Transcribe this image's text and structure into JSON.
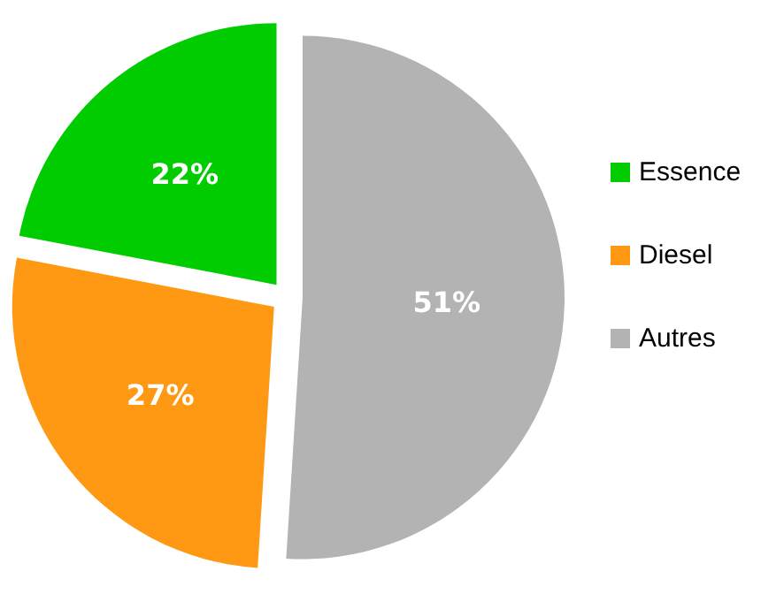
{
  "chart_data": {
    "type": "pie",
    "categories": [
      "Essence",
      "Diesel",
      "Autres"
    ],
    "values": [
      22,
      27,
      51
    ],
    "colors": [
      "#00cc00",
      "#ff9914",
      "#b3b3b3"
    ],
    "value_labels": [
      "22%",
      "27%",
      "51%"
    ],
    "legend": "right"
  }
}
